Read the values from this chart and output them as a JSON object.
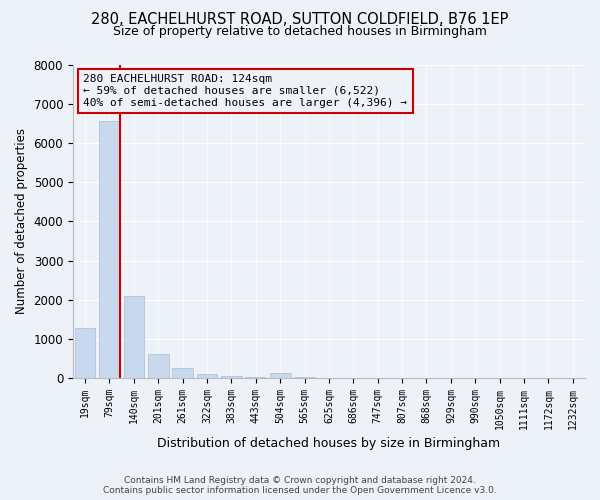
{
  "title": "280, EACHELHURST ROAD, SUTTON COLDFIELD, B76 1EP",
  "subtitle": "Size of property relative to detached houses in Birmingham",
  "xlabel": "Distribution of detached houses by size in Birmingham",
  "ylabel": "Number of detached properties",
  "bar_color": "#c8d9ee",
  "bar_edgecolor": "#aabdd8",
  "bg_color": "#edf1f8",
  "grid_color": "#ffffff",
  "annotation_box_color": "#cc0000",
  "vline_color": "#cc0000",
  "categories": [
    "19sqm",
    "79sqm",
    "140sqm",
    "201sqm",
    "261sqm",
    "322sqm",
    "383sqm",
    "443sqm",
    "504sqm",
    "565sqm",
    "625sqm",
    "686sqm",
    "747sqm",
    "807sqm",
    "868sqm",
    "929sqm",
    "990sqm",
    "1050sqm",
    "1111sqm",
    "1172sqm",
    "1232sqm"
  ],
  "values": [
    1280,
    6580,
    2080,
    610,
    250,
    95,
    40,
    25,
    120,
    15,
    5,
    3,
    3,
    3,
    3,
    3,
    3,
    3,
    3,
    3,
    3
  ],
  "property_label": "280 EACHELHURST ROAD: 124sqm",
  "pct_smaller": "59% of detached houses are smaller (6,522)",
  "pct_larger": "40% of semi-detached houses are larger (4,396)",
  "vline_index": 1.42,
  "ylim": [
    0,
    8000
  ],
  "yticks": [
    0,
    1000,
    2000,
    3000,
    4000,
    5000,
    6000,
    7000,
    8000
  ],
  "footer_line1": "Contains HM Land Registry data © Crown copyright and database right 2024.",
  "footer_line2": "Contains public sector information licensed under the Open Government Licence v3.0."
}
